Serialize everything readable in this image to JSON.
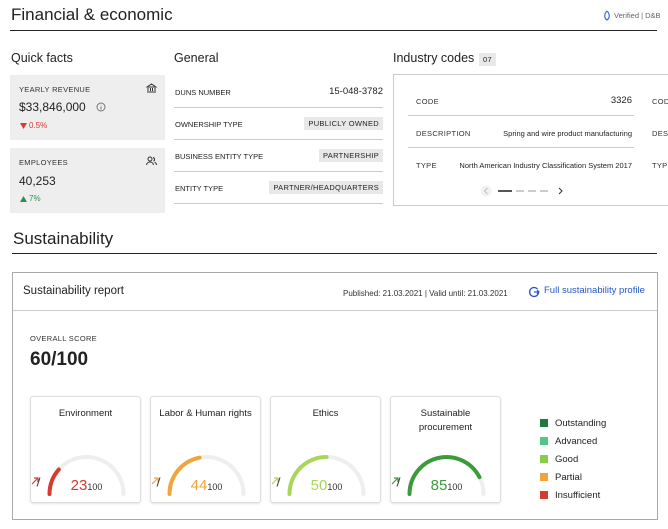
{
  "header": {
    "title": "Financial & economic",
    "verified": "Verified | D&B"
  },
  "quick_facts": {
    "title": "Quick facts",
    "revenue": {
      "label": "YEARLY REVENUE",
      "value": "$33,846,000",
      "change": "0.5%"
    },
    "employees": {
      "label": "EMPLOYEES",
      "value": "40,253",
      "change": "7%"
    }
  },
  "general": {
    "title": "General",
    "rows": [
      [
        "DUNS NUMBER",
        "15-048-3782"
      ],
      [
        "OWNERSHIP TYPE",
        "PUBLICLY OWNED"
      ],
      [
        "BUSINESS ENTITY TYPE",
        "PARTNERSHIP"
      ],
      [
        "ENTITY TYPE",
        "PARTNER/HEADQUARTERS"
      ]
    ]
  },
  "industry_codes": {
    "title": "Industry codes",
    "count": "07",
    "fields": [
      "CODE",
      "DESCRIPTION",
      "TYPE"
    ],
    "entries": [
      [
        "3326",
        "Spring and wire product manufacturing",
        "North American Industry Classification System 2017"
      ]
    ]
  },
  "sustainability": {
    "title": "Sustainability",
    "report_title": "Sustainability report",
    "published": "Published: 21.03.2021 | Valid until: 21.03.2021",
    "link": "Full sustainability profile",
    "overall_label": "OVERALL SCORE",
    "overall_score": "60/100",
    "gauges": [
      {
        "name": "Environment",
        "value": 23,
        "out_of": 100,
        "color": "#d63b2f"
      },
      {
        "name": "Labor & Human rights",
        "value": 44,
        "out_of": 100,
        "color": "#f0a53a"
      },
      {
        "name": "Ethics",
        "value": 50,
        "out_of": 100,
        "color": "#a9d65a"
      },
      {
        "name": "Sustainable procurement",
        "value": 85,
        "out_of": 100,
        "color": "#3d9a3a"
      }
    ],
    "legend": [
      {
        "name": "Outstanding",
        "color": "#1f7a3d"
      },
      {
        "name": "Advanced",
        "color": "#4cc889"
      },
      {
        "name": "Good",
        "color": "#86cf45"
      },
      {
        "name": "Partial",
        "color": "#f0a53a"
      },
      {
        "name": "Insufficient",
        "color": "#d63b2f"
      }
    ]
  }
}
